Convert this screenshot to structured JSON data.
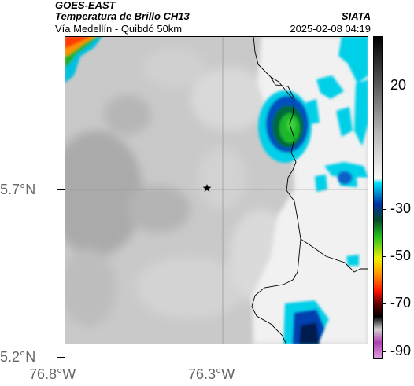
{
  "header": {
    "satellite": "GOES-EAST",
    "product": "Temperatura de Brillo CH13",
    "route": "Vía Medellín - Quibdó 50km",
    "brand": "SIATA",
    "datetime": "2025-02-08 04:19"
  },
  "axes": {
    "latitude_labels": [
      "5.7°N",
      "5.2°N"
    ],
    "longitude_labels": [
      "76.8°W",
      "76.3°W"
    ]
  },
  "colorbar": {
    "labels": [
      "20",
      "-30",
      "-50",
      "-70",
      "-90"
    ],
    "unit": ""
  },
  "map": {
    "marker": "star",
    "colors": {
      "background_gray": "#c8c8c8",
      "cold_cloud_cyan": "#00d0e8",
      "cold_cloud_blue": "#0050c0",
      "core_green": "#20b020",
      "warm_orange": "#ff9000",
      "clear_white": "#f4f4f4"
    }
  }
}
